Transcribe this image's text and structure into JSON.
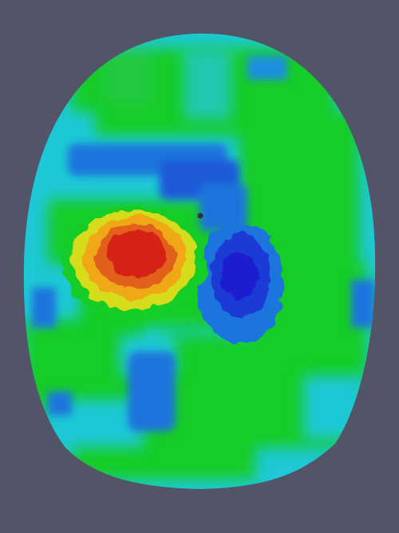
{
  "scene": {
    "background_color": "#525468",
    "colormap": {
      "name": "rainbow",
      "stops": [
        "#1a1fd0",
        "#1f74dc",
        "#1fc8d6",
        "#18cc26",
        "#d6dc1c",
        "#f0a814",
        "#d62414"
      ]
    }
  }
}
